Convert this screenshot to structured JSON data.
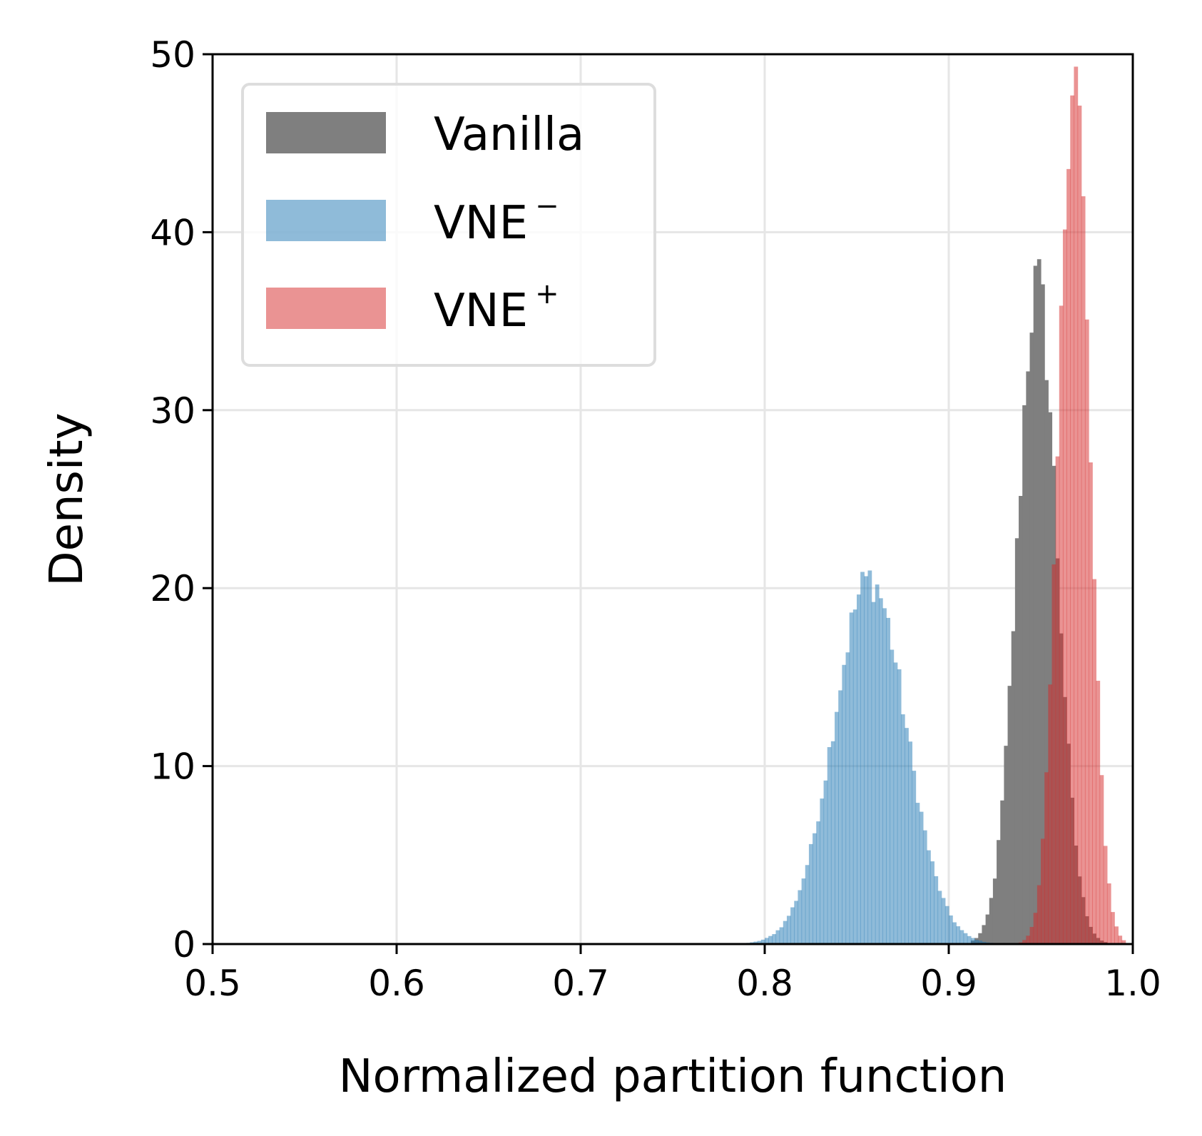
{
  "chart_data": {
    "type": "histogram",
    "xlabel": "Normalized partition function",
    "ylabel": "Density",
    "xlim": [
      0.5,
      1.0
    ],
    "ylim": [
      0,
      50
    ],
    "xticks": [
      "0.5",
      "0.6",
      "0.7",
      "0.8",
      "0.9",
      "1.0"
    ],
    "yticks": [
      "0",
      "10",
      "20",
      "30",
      "40",
      "50"
    ],
    "grid": true,
    "legend_position": "top-left",
    "bin_width": 0.002,
    "series": [
      {
        "name": "Vanilla",
        "name_sup": "",
        "color": "#7f7f7f",
        "opacity": 1.0,
        "distribution": {
          "mean": 0.948,
          "std": 0.0108,
          "peak_density": 37,
          "range": [
            0.912,
            0.985
          ]
        }
      },
      {
        "name": "VNE",
        "name_sup": "−",
        "color": "#1f77b4",
        "opacity": 0.5,
        "distribution": {
          "mean": 0.857,
          "std": 0.0195,
          "peak_density": 20.5,
          "range": [
            0.785,
            0.93
          ]
        }
      },
      {
        "name": "VNE",
        "name_sup": "+",
        "color": "#d62728",
        "opacity": 0.5,
        "distribution": {
          "mean": 0.968,
          "std": 0.0082,
          "peak_density": 49.5,
          "range": [
            0.94,
            0.995
          ]
        }
      }
    ]
  }
}
